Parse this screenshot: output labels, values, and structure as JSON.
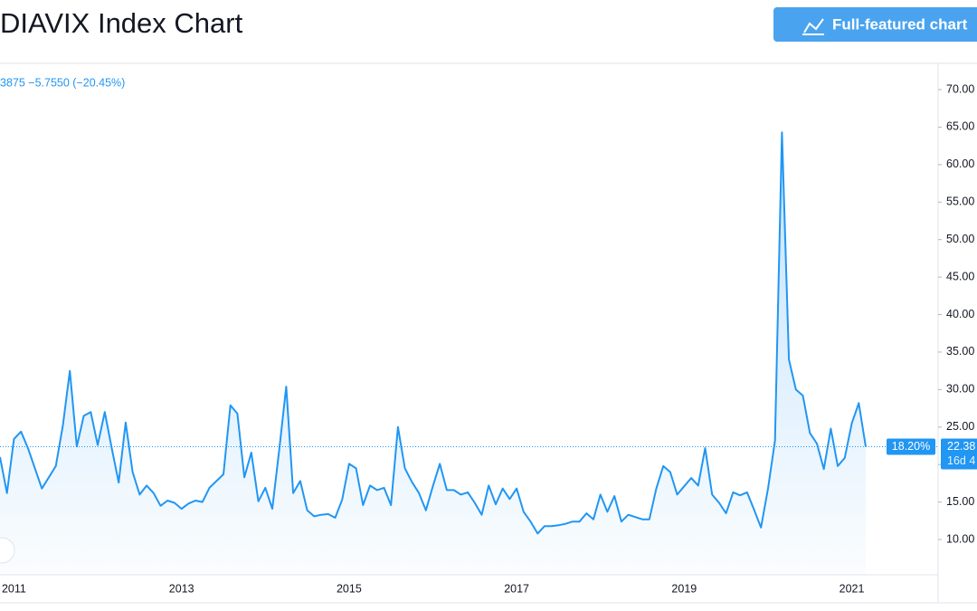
{
  "chart_data": {
    "type": "line",
    "title": "DIAVIX Index Chart",
    "button_label": "Full-featured chart",
    "header_change": "3875  −5.7550 (−20.45%)",
    "last_value_label": "22.38",
    "percent_label": "18.20%",
    "countdown_label": "16d 4",
    "color": "#2196f3",
    "categories": [
      null,
      null,
      "2011",
      null,
      null,
      null,
      null,
      null,
      null,
      null,
      null,
      null,
      null,
      null,
      null,
      null,
      null,
      null,
      null,
      null,
      null,
      null,
      null,
      null,
      null,
      null,
      "2013",
      null,
      null,
      null,
      null,
      null,
      null,
      null,
      null,
      null,
      null,
      null,
      null,
      null,
      null,
      null,
      null,
      null,
      null,
      null,
      null,
      null,
      null,
      null,
      "2015",
      null,
      null,
      null,
      null,
      null,
      null,
      null,
      null,
      null,
      null,
      null,
      null,
      null,
      null,
      null,
      null,
      null,
      null,
      null,
      null,
      null,
      null,
      null,
      "2017",
      null,
      null,
      null,
      null,
      null,
      null,
      null,
      null,
      null,
      null,
      null,
      null,
      null,
      null,
      null,
      null,
      null,
      null,
      null,
      null,
      null,
      null,
      null,
      "2019",
      null,
      null,
      null,
      null,
      null,
      null,
      null,
      null,
      null,
      null,
      null,
      null,
      null,
      null,
      null,
      null,
      null,
      null,
      null,
      null,
      null,
      null,
      null,
      "2021",
      null,
      null
    ],
    "values": [
      21,
      16.2,
      23.4,
      24.4,
      22.2,
      19.5,
      16.8,
      18.3,
      19.8,
      25.2,
      32.5,
      22.4,
      26.5,
      27,
      22.6,
      27,
      22.2,
      17.6,
      25.6,
      19,
      16,
      17.2,
      16.2,
      14.5,
      15.2,
      14.9,
      14.1,
      14.8,
      15.2,
      15,
      16.9,
      17.8,
      18.7,
      27.9,
      26.8,
      18.3,
      21.6,
      15.1,
      16.9,
      14.1,
      22,
      30.4,
      16.2,
      17.8,
      13.9,
      13.1,
      13.3,
      13.4,
      12.9,
      15.3,
      20.1,
      19.5,
      14.6,
      17.2,
      16.6,
      16.9,
      14.6,
      25,
      19.5,
      17.7,
      16.2,
      13.9,
      17.1,
      20.1,
      16.6,
      16.6,
      16,
      16.3,
      14.9,
      13.3,
      17.2,
      14.7,
      16.8,
      15.4,
      16.8,
      13.7,
      12.4,
      10.8,
      11.8,
      11.8,
      11.9,
      12.1,
      12.4,
      12.4,
      13.5,
      12.7,
      16,
      13.7,
      15.8,
      12.4,
      13.3,
      13,
      12.7,
      12.7,
      16.8,
      19.8,
      19,
      16,
      17.1,
      18.2,
      17.2,
      22.2,
      16,
      14.9,
      13.5,
      16.3,
      15.9,
      16.3,
      14,
      11.6,
      16.8,
      23.2,
      64.3,
      34,
      30,
      29.2,
      24.2,
      22.8,
      19.4,
      24.8,
      19.8,
      20.9,
      25.5,
      28.2,
      22.38
    ],
    "ylim": [
      5.3,
      73.5
    ],
    "yticks": [
      {
        "value": 10,
        "label": "10.00"
      },
      {
        "value": 15,
        "label": "15.00"
      },
      {
        "value": 20,
        "label": "20.00"
      },
      {
        "value": 25,
        "label": "25.00"
      },
      {
        "value": 30,
        "label": "30.00"
      },
      {
        "value": 35,
        "label": "35.00"
      },
      {
        "value": 40,
        "label": "40.00"
      },
      {
        "value": 45,
        "label": "45.00"
      },
      {
        "value": 50,
        "label": "50.00"
      },
      {
        "value": 55,
        "label": "55.00"
      },
      {
        "value": 60,
        "label": "60.00"
      },
      {
        "value": 65,
        "label": "65.00"
      },
      {
        "value": 70,
        "label": "70.00"
      }
    ]
  }
}
